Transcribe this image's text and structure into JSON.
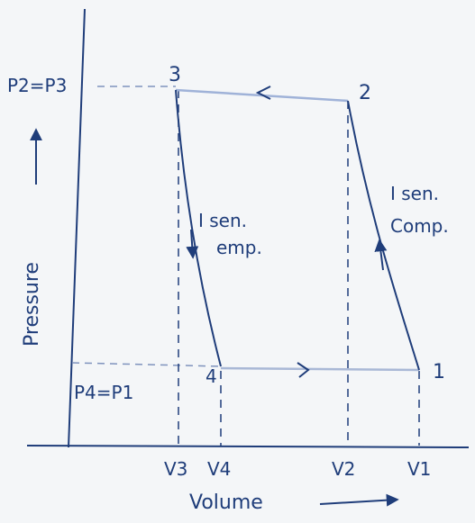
{
  "labels": {
    "state_1": "1",
    "state_2": "2",
    "state_3": "3",
    "state_4": "4",
    "p_high": "P2=P3",
    "p_low": "P4=P1",
    "process_23_line1": "I sen.",
    "process_23_line2": "Comp.",
    "process_34_line1": "I sen.",
    "process_34_line2": "emp.",
    "v3": "V3",
    "v4": "V4",
    "v2": "V2",
    "v1": "V1",
    "y_axis": "Pressure",
    "x_axis": "Volume"
  },
  "colors": {
    "ink": "#1f3d7a",
    "guide": "#a9b8d6",
    "paper": "#f4f6f8"
  }
}
